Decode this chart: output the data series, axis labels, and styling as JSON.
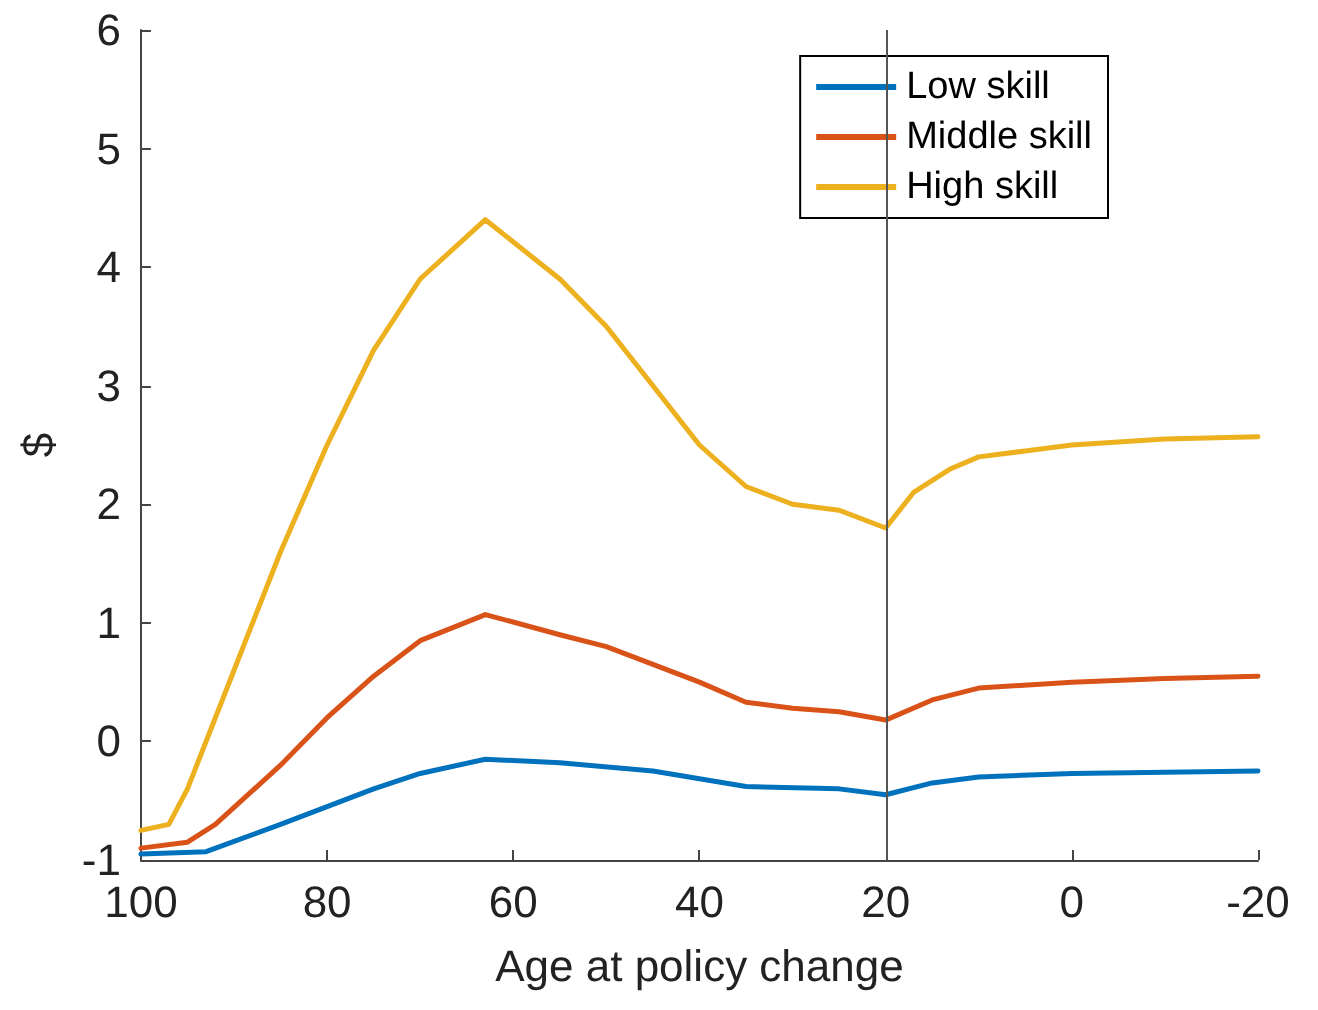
{
  "chart_data": {
    "type": "line",
    "xlabel": "Age at policy change",
    "ylabel": "$",
    "xlim": [
      100,
      -20
    ],
    "xticks": [
      100,
      80,
      60,
      40,
      20,
      0,
      -20
    ],
    "ylim": [
      -1,
      6
    ],
    "yticks": [
      -1,
      0,
      1,
      2,
      3,
      4,
      5,
      6
    ],
    "grid": false,
    "legend": "top right",
    "marker": "none",
    "line_style": "solid",
    "ref_lines": [
      {
        "axis": "x",
        "value": 20,
        "color": "#555555"
      }
    ],
    "series": [
      {
        "name": "Low skill",
        "color": "#0072bd",
        "x": [
          100,
          93,
          85,
          80,
          75,
          70,
          63,
          55,
          45,
          35,
          25,
          20,
          15,
          10,
          0,
          -20
        ],
        "values": [
          -0.95,
          -0.93,
          -0.7,
          -0.55,
          -0.4,
          -0.27,
          -0.15,
          -0.18,
          -0.25,
          -0.38,
          -0.4,
          -0.45,
          -0.35,
          -0.3,
          -0.27,
          -0.25
        ]
      },
      {
        "name": "Middle skill",
        "color": "#d95319",
        "x": [
          100,
          95,
          92,
          85,
          80,
          75,
          70,
          63,
          55,
          50,
          45,
          40,
          35,
          30,
          25,
          20,
          15,
          10,
          0,
          -10,
          -20
        ],
        "values": [
          -0.9,
          -0.85,
          -0.7,
          -0.2,
          0.2,
          0.55,
          0.85,
          1.07,
          0.9,
          0.8,
          0.65,
          0.5,
          0.33,
          0.28,
          0.25,
          0.18,
          0.35,
          0.45,
          0.5,
          0.53,
          0.55
        ]
      },
      {
        "name": "High skill",
        "color": "#edb120",
        "x": [
          100,
          97,
          95,
          90,
          85,
          80,
          75,
          70,
          63,
          55,
          50,
          45,
          40,
          35,
          30,
          25,
          20,
          17,
          13,
          10,
          5,
          0,
          -10,
          -20
        ],
        "values": [
          -0.75,
          -0.7,
          -0.4,
          0.6,
          1.6,
          2.5,
          3.3,
          3.9,
          4.4,
          3.9,
          3.5,
          3.0,
          2.5,
          2.15,
          2.0,
          1.95,
          1.8,
          2.1,
          2.3,
          2.4,
          2.45,
          2.5,
          2.55,
          2.57
        ]
      }
    ]
  }
}
